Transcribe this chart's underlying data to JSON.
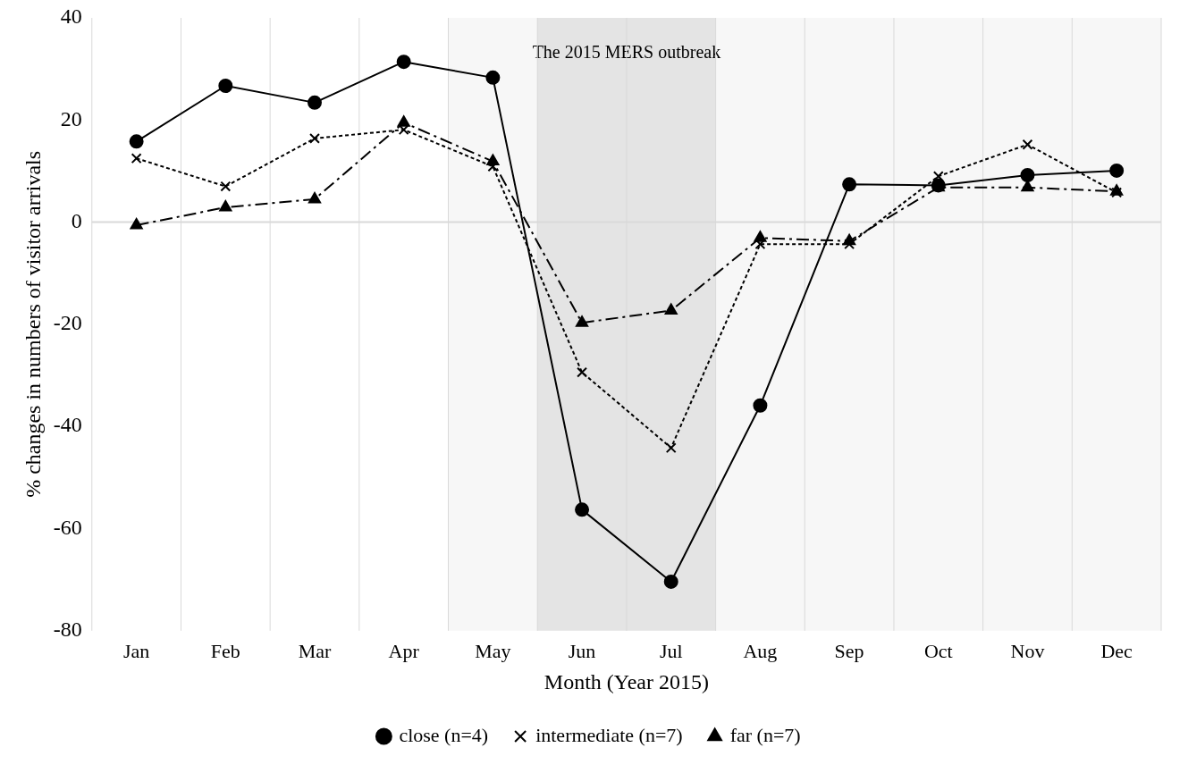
{
  "chart_data": {
    "type": "line",
    "xlabel": "Month (Year 2015)",
    "ylabel": "% changes in numbers of visitor arrivals",
    "categories": [
      "Jan",
      "Feb",
      "Mar",
      "Apr",
      "May",
      "Jun",
      "Jul",
      "Aug",
      "Sep",
      "Oct",
      "Nov",
      "Dec"
    ],
    "series": [
      {
        "name": "close (n=4)",
        "color": "#000000",
        "marker": "circle",
        "line_style": "solid",
        "values": [
          15.8,
          26.7,
          23.4,
          31.4,
          28.3,
          -56.3,
          -70.4,
          -35.9,
          7.4,
          7.2,
          9.2,
          10.1
        ]
      },
      {
        "name": "intermediate (n=7)",
        "color": "#000000",
        "marker": "cross",
        "line_style": "dotted",
        "values": [
          12.5,
          7,
          16.4,
          18.1,
          10.9,
          -29.4,
          -44.2,
          -4.3,
          -4.3,
          9,
          15.2,
          5.8
        ]
      },
      {
        "name": "far (n=7)",
        "color": "#000000",
        "marker": "triangle",
        "line_style": "dashed",
        "values": [
          -0.6,
          2.9,
          4.5,
          19.5,
          11.9,
          -19.7,
          -17.3,
          -3.1,
          -3.7,
          6.8,
          6.8,
          6
        ]
      }
    ],
    "ylim": [
      -80,
      40
    ],
    "yticks": [
      -80,
      -60,
      -40,
      -20,
      0,
      20,
      40
    ],
    "grid": "x",
    "legend": "bottom",
    "ref_lines": [
      {
        "axis": "y",
        "value": 0,
        "color": "#d9d9d9"
      }
    ],
    "bands": [
      {
        "axis": "x",
        "from": "May",
        "to": "Dec",
        "color": "#f7f7f7"
      },
      {
        "axis": "x",
        "from": "Jun",
        "to": "Jul",
        "color": "#e4e4e4",
        "label": "The 2015 MERS outbreak"
      }
    ]
  }
}
